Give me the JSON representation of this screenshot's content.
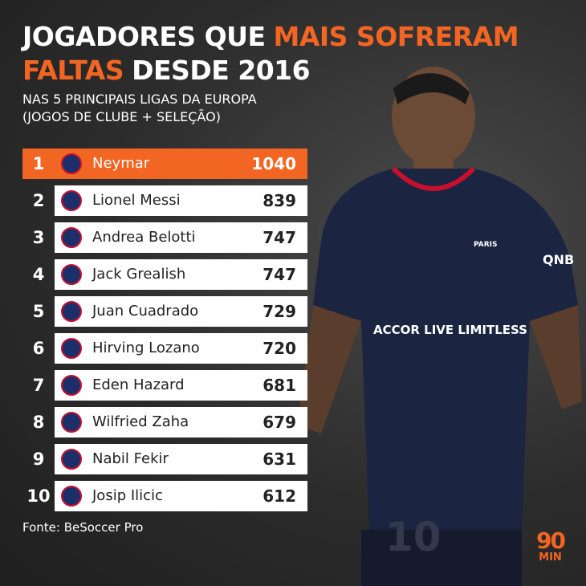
{
  "header": {
    "title_line1": [
      "JOGADORES QUE",
      "MAIS SOFRERAM"
    ],
    "title_line2": [
      "FALTAS",
      "DESDE 2016"
    ],
    "subtitle": [
      "NAS 5 PRINCIPAIS LIGAS DA EUROPA",
      "(JOGOS DE CLUBE + SELEÇÃO)"
    ]
  },
  "table": {
    "rows": [
      [
        "1",
        "Neymar",
        "1040"
      ],
      [
        "2",
        "Lionel Messi",
        "839"
      ],
      [
        "3",
        "Andrea Belotti",
        "747"
      ],
      [
        "4",
        "Jack Grealish",
        "747"
      ],
      [
        "5",
        "Juan Cuadrado",
        "729"
      ],
      [
        "6",
        "Hirving Lozano",
        "720"
      ],
      [
        "7",
        "Eden Hazard",
        "681"
      ],
      [
        "8",
        "Wilfried Zaha",
        "679"
      ],
      [
        "9",
        "Nabil Fekir",
        "631"
      ],
      [
        "10",
        "Josip Ilicic",
        "612"
      ]
    ]
  },
  "image": {
    "shirt_sponsor": "ACCOR LIVE LIMITLESS",
    "shirt_club": "PARIS",
    "shirt_sleeve": "QNB",
    "shirt_number": "10"
  },
  "footer": {
    "source": "Fonte: BeSoccer Pro",
    "logo": [
      "90",
      "MIN"
    ]
  }
}
